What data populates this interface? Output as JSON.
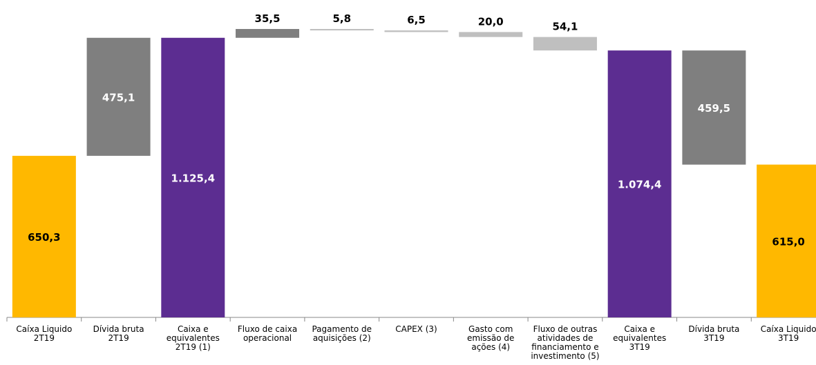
{
  "chart_data": {
    "type": "bar",
    "subtype": "waterfall",
    "categories": [
      [
        "Caíxa Liquido",
        "2T19"
      ],
      [
        "Dívida bruta",
        "2T19"
      ],
      [
        "Caixa e",
        "equivalentes",
        "2T19 (1)"
      ],
      [
        "Fluxo de caixa",
        "operacional"
      ],
      [
        "Pagamento de",
        "aquisições (2)"
      ],
      [
        "CAPEX (3)"
      ],
      [
        "Gasto com",
        "emissão de",
        "ações (4)"
      ],
      [
        "Fluxo de outras",
        "atividades de",
        "financiamento e",
        "investimento (5)"
      ],
      [
        "Caixa e",
        "equivalentes",
        "3T19"
      ],
      [
        "Dívida bruta",
        "3T19"
      ],
      [
        "Caíxa Liquido",
        "3T19"
      ]
    ],
    "bars": [
      {
        "label": "650,3",
        "base": 0,
        "top": 650.3,
        "color": "#FFB800",
        "label_color": "#000000",
        "label_pos": "inside"
      },
      {
        "label": "475,1",
        "base": 650.3,
        "top": 1125.4,
        "color": "#7F7F7F",
        "label_color": "#ffffff",
        "label_pos": "inside"
      },
      {
        "label": "1.125,4",
        "base": 0,
        "top": 1125.4,
        "color": "#5C2D91",
        "label_color": "#ffffff",
        "label_pos": "inside"
      },
      {
        "label": "35,5",
        "base": 1125.4,
        "top": 1160.9,
        "color": "#7F7F7F",
        "label_color": "#000000",
        "label_pos": "above"
      },
      {
        "label": "5,8",
        "base": 1155.1,
        "top": 1160.9,
        "color": "#BFBFBF",
        "label_color": "#000000",
        "label_pos": "above"
      },
      {
        "label": "6,5",
        "base": 1148.6,
        "top": 1155.1,
        "color": "#BFBFBF",
        "label_color": "#000000",
        "label_pos": "above"
      },
      {
        "label": "20,0",
        "base": 1128.6,
        "top": 1148.6,
        "color": "#BFBFBF",
        "label_color": "#000000",
        "label_pos": "above"
      },
      {
        "label": "54,1",
        "base": 1074.4,
        "top": 1128.6,
        "color": "#BFBFBF",
        "label_color": "#000000",
        "label_pos": "above"
      },
      {
        "label": "1.074,4",
        "base": 0,
        "top": 1074.4,
        "color": "#5C2D91",
        "label_color": "#ffffff",
        "label_pos": "inside"
      },
      {
        "label": "459,5",
        "base": 614.9,
        "top": 1074.4,
        "color": "#7F7F7F",
        "label_color": "#ffffff",
        "label_pos": "inside"
      },
      {
        "label": "615,0",
        "base": 0,
        "top": 615.0,
        "color": "#FFB800",
        "label_color": "#000000",
        "label_pos": "inside"
      }
    ],
    "ylim": [
      0,
      1160.9
    ],
    "title": "",
    "xlabel": "",
    "ylabel": "",
    "grid": false,
    "legend": "none"
  }
}
